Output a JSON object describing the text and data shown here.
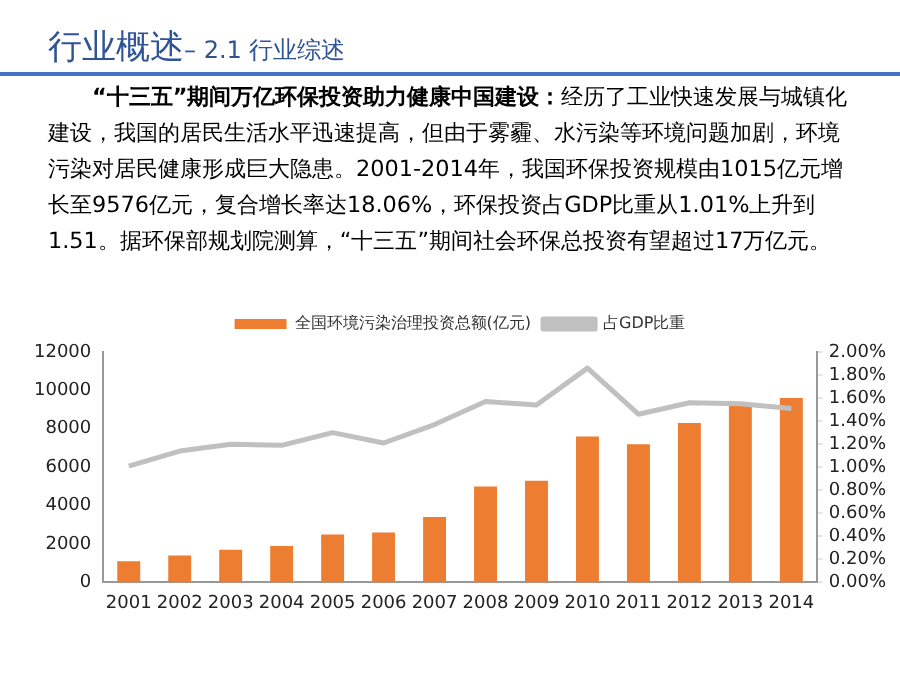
{
  "chart_data": {
    "type": "bar",
    "title": "行业概述",
    "subtitle": "– 2.1 行业综述",
    "annotations": [
      "“十三五”期间万亿环保投资助力健康中国建设：",
      "经历了工业快速发展与城镇化建设，我国的居民生活水平迅速提高，但由于雾霾、水污染等环境问题加剧，环境污染对居民健康形成巨大隐患。2001-2014年，我国环保投资规模由1015亿元增长至9576亿元，复合增长率达18.06%，环保投资占GDP比重从1.01%上升到1.51。据环保部规划院测算，“十三五”期间社会环保总投资有望超过17万亿元。"
    ],
    "categories": [
      "2001",
      "2002",
      "2003",
      "2004",
      "2005",
      "2006",
      "2007",
      "2008",
      "2009",
      "2010",
      "2011",
      "2012",
      "2013",
      "2014"
    ],
    "series": [
      {
        "name": "全国环境污染治理投资总额(亿元)",
        "color": "#ed7d31",
        "values": [
          1100,
          1400,
          1700,
          1900,
          2500,
          2600,
          3400,
          5000,
          5300,
          7600,
          7200,
          8300,
          9200,
          9600
        ]
      },
      {
        "name": "占GDP比重",
        "type": "line",
        "axis": "y2",
        "color": "#c0c0c0",
        "values": [
          1.01,
          1.14,
          1.2,
          1.19,
          1.3,
          1.21,
          1.37,
          1.57,
          1.54,
          1.86,
          1.46,
          1.56,
          1.55,
          1.51
        ]
      }
    ],
    "ylim": [
      0,
      12000
    ],
    "yticks": [
      0,
      2000,
      4000,
      6000,
      8000,
      10000,
      12000
    ],
    "y2lim": [
      0,
      2
    ],
    "y2ticks": [
      {
        "value": 0,
        "label": "0.00%"
      },
      {
        "value": 0.2,
        "label": "0.20%"
      },
      {
        "value": 0.4,
        "label": "0.40%"
      },
      {
        "value": 0.6,
        "label": "0.60%"
      },
      {
        "value": 0.8,
        "label": "0.80%"
      },
      {
        "value": 1,
        "label": "1.00%"
      },
      {
        "value": 1.2,
        "label": "1.20%"
      },
      {
        "value": 1.4,
        "label": "1.40%"
      },
      {
        "value": 1.6,
        "label": "1.60%"
      },
      {
        "value": 1.8,
        "label": "1.80%"
      },
      {
        "value": 2,
        "label": "2.00%"
      }
    ],
    "grid": false,
    "legend": "top",
    "marker": "none",
    "line_style": "solid"
  }
}
